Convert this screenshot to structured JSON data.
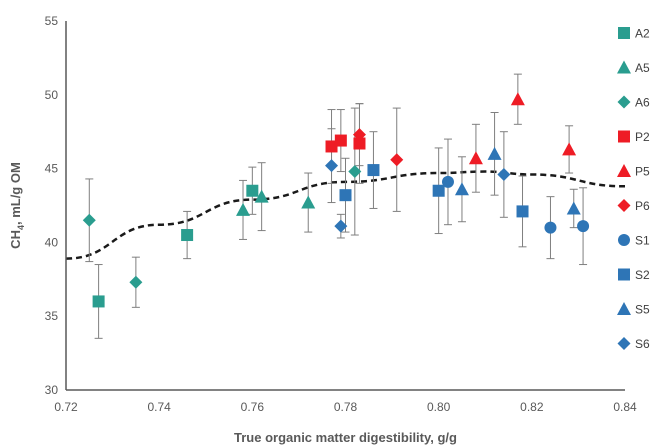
{
  "chart_data": {
    "type": "scatter",
    "title": "",
    "xlabel": "True organic matter digestibility, g/g",
    "ylabel_main": "CH",
    "ylabel_sub": "4",
    "ylabel_rest": ", mL/g OM",
    "xlim": [
      0.72,
      0.84
    ],
    "ylim": [
      30,
      55
    ],
    "x_ticks": [
      0.72,
      0.74,
      0.76,
      0.78,
      0.8,
      0.82,
      0.84
    ],
    "x_tick_labels": [
      "0.72",
      "0.74",
      "0.76",
      "0.78",
      "0.80",
      "0.82",
      "0.84"
    ],
    "y_ticks": [
      30,
      35,
      40,
      45,
      50,
      55
    ],
    "y_tick_labels": [
      "30",
      "35",
      "40",
      "45",
      "50",
      "55"
    ],
    "grid": false,
    "legend_position": "right",
    "colors": {
      "teal": "#2a9d8f",
      "red": "#ee1c25",
      "blue": "#2e75b6",
      "errorbar": "#7f7f7f",
      "axis": "#595959"
    },
    "series": [
      {
        "name": "A2",
        "marker": "square",
        "color": "#2a9d8f",
        "points": [
          {
            "x": 0.727,
            "y": 36.0,
            "err": 2.5
          },
          {
            "x": 0.746,
            "y": 40.5,
            "err": 1.6
          },
          {
            "x": 0.76,
            "y": 43.5,
            "err": 1.6
          }
        ]
      },
      {
        "name": "A5",
        "marker": "triangle",
        "color": "#2a9d8f",
        "points": [
          {
            "x": 0.758,
            "y": 42.2,
            "err": 2.0
          },
          {
            "x": 0.762,
            "y": 43.1,
            "err": 2.3
          },
          {
            "x": 0.772,
            "y": 42.7,
            "err": 2.0
          }
        ]
      },
      {
        "name": "A6",
        "marker": "diamond",
        "color": "#2a9d8f",
        "points": [
          {
            "x": 0.725,
            "y": 41.5,
            "err": 2.8
          },
          {
            "x": 0.735,
            "y": 37.3,
            "err": 1.7
          },
          {
            "x": 0.782,
            "y": 44.8,
            "err": 4.3
          }
        ]
      },
      {
        "name": "P2",
        "marker": "square",
        "color": "#ee1c25",
        "points": [
          {
            "x": 0.777,
            "y": 46.5,
            "err": 2.5
          },
          {
            "x": 0.779,
            "y": 46.9,
            "err": 2.1
          },
          {
            "x": 0.783,
            "y": 46.7,
            "err": 2.7
          }
        ]
      },
      {
        "name": "P5",
        "marker": "triangle",
        "color": "#ee1c25",
        "points": [
          {
            "x": 0.808,
            "y": 45.7,
            "err": 2.3
          },
          {
            "x": 0.817,
            "y": 49.7,
            "err": 1.7
          },
          {
            "x": 0.828,
            "y": 46.3,
            "err": 1.6
          }
        ]
      },
      {
        "name": "P6",
        "marker": "diamond",
        "color": "#ee1c25",
        "points": [
          {
            "x": 0.783,
            "y": 47.3,
            "err": 2.1
          },
          {
            "x": 0.791,
            "y": 45.6,
            "err": 3.5
          }
        ]
      },
      {
        "name": "S1",
        "marker": "circle",
        "color": "#2e75b6",
        "points": [
          {
            "x": 0.802,
            "y": 44.1,
            "err": 2.9
          },
          {
            "x": 0.824,
            "y": 41.0,
            "err": 2.1
          },
          {
            "x": 0.831,
            "y": 41.1,
            "err": 2.6
          }
        ]
      },
      {
        "name": "S2",
        "marker": "square",
        "color": "#2e75b6",
        "points": [
          {
            "x": 0.78,
            "y": 43.2,
            "err": 2.5
          },
          {
            "x": 0.786,
            "y": 44.9,
            "err": 2.6
          },
          {
            "x": 0.8,
            "y": 43.5,
            "err": 2.9
          },
          {
            "x": 0.818,
            "y": 42.1,
            "err": 2.4
          }
        ]
      },
      {
        "name": "S5",
        "marker": "triangle",
        "color": "#2e75b6",
        "points": [
          {
            "x": 0.805,
            "y": 43.6,
            "err": 2.2
          },
          {
            "x": 0.812,
            "y": 46.0,
            "err": 2.8
          },
          {
            "x": 0.829,
            "y": 42.3,
            "err": 1.3
          }
        ]
      },
      {
        "name": "S6",
        "marker": "diamond",
        "color": "#2e75b6",
        "points": [
          {
            "x": 0.777,
            "y": 45.2,
            "err": 2.5
          },
          {
            "x": 0.779,
            "y": 41.1,
            "err": 0.8
          },
          {
            "x": 0.814,
            "y": 44.6,
            "err": 2.9
          }
        ]
      }
    ],
    "trendline": {
      "type": "quadratic",
      "style": "dashed",
      "color": "#1a1a1a",
      "points": [
        {
          "x": 0.72,
          "y": 38.9
        },
        {
          "x": 0.74,
          "y": 41.2
        },
        {
          "x": 0.76,
          "y": 42.9
        },
        {
          "x": 0.78,
          "y": 44.1
        },
        {
          "x": 0.8,
          "y": 44.7
        },
        {
          "x": 0.81,
          "y": 44.8
        },
        {
          "x": 0.82,
          "y": 44.6
        },
        {
          "x": 0.84,
          "y": 43.8
        }
      ]
    }
  }
}
